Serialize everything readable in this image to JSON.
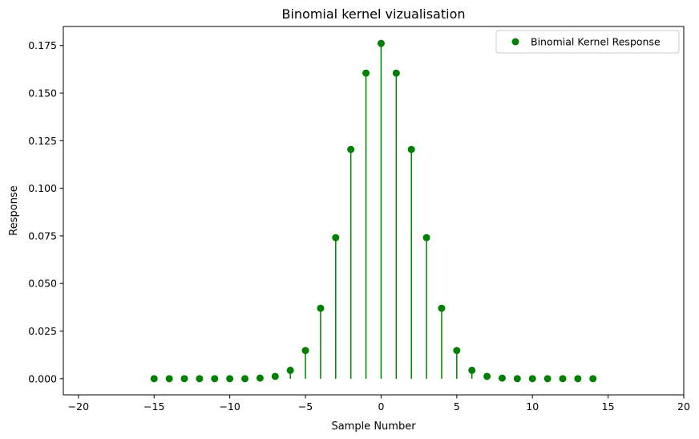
{
  "chart_data": {
    "type": "stem",
    "title": "Binomial kernel vizualisation",
    "xlabel": "Sample Number",
    "ylabel": "Response",
    "xlim": [
      -21,
      20
    ],
    "ylim": [
      -0.0085,
      0.185
    ],
    "xticks": [
      -20,
      -15,
      -10,
      -5,
      0,
      5,
      10,
      15,
      20
    ],
    "xtick_labels": [
      "−20",
      "−15",
      "−10",
      "−5",
      "0",
      "5",
      "10",
      "15",
      "20"
    ],
    "yticks": [
      0.0,
      0.025,
      0.05,
      0.075,
      0.1,
      0.125,
      0.15,
      0.175
    ],
    "ytick_labels": [
      "0.000",
      "0.025",
      "0.050",
      "0.075",
      "0.100",
      "0.125",
      "0.150",
      "0.175"
    ],
    "grid": false,
    "legend": {
      "position": "top-right",
      "entries": [
        "Binomial Kernel Response"
      ]
    },
    "series": [
      {
        "name": "Binomial Kernel Response",
        "color": "#008000",
        "x": [
          -15,
          -14,
          -13,
          -12,
          -11,
          -10,
          -9,
          -8,
          -7,
          -6,
          -5,
          -4,
          -3,
          -2,
          -1,
          0,
          1,
          2,
          3,
          4,
          5,
          6,
          7,
          8,
          9,
          10,
          11,
          12,
          13,
          14
        ],
        "y": [
          0.0,
          0.0,
          0.0,
          0.0,
          0.0,
          0.0,
          0.0,
          0.0003,
          0.0012,
          0.0044,
          0.0148,
          0.037,
          0.0741,
          0.1204,
          0.1605,
          0.1761,
          0.1605,
          0.1204,
          0.0741,
          0.037,
          0.0148,
          0.0044,
          0.0012,
          0.0003,
          0.0,
          0.0,
          0.0,
          0.0,
          0.0,
          0.0
        ]
      }
    ]
  }
}
